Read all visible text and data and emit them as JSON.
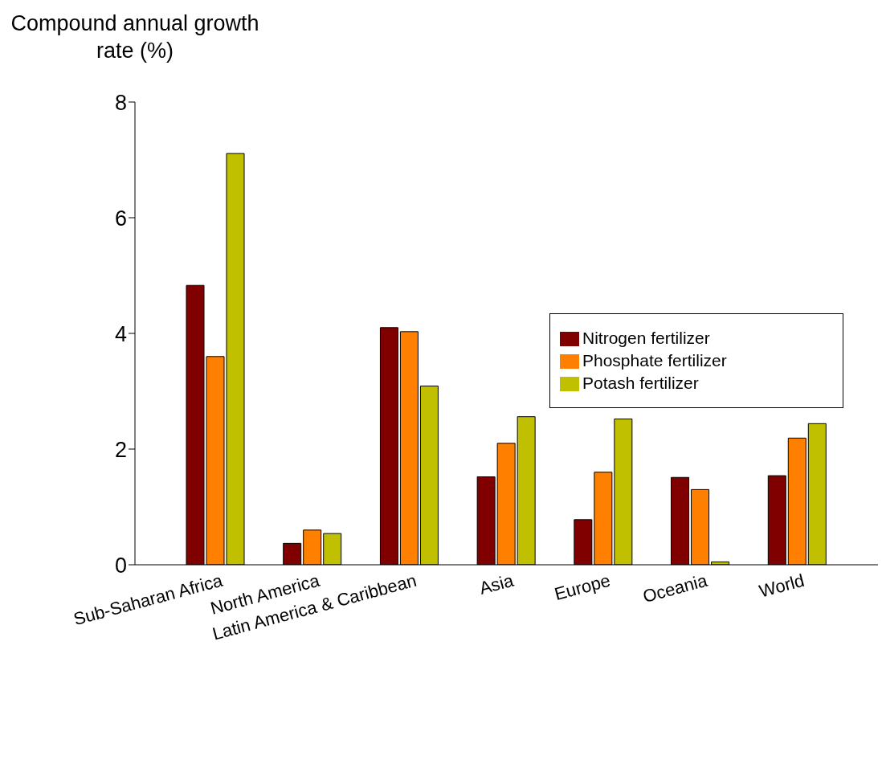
{
  "chart_data": {
    "type": "bar",
    "ylabel": "Compound annual growth rate (%)",
    "categories": [
      "Sub-Saharan Africa",
      "North America",
      "Latin America & Caribbean",
      "Asia",
      "Europe",
      "Oceania",
      "World"
    ],
    "series": [
      {
        "name": "Nitrogen fertilizer",
        "color": "#800000",
        "values": [
          4.83,
          0.37,
          4.1,
          1.52,
          0.78,
          1.51,
          1.54
        ]
      },
      {
        "name": "Phosphate fertilizer",
        "color": "#ff8000",
        "values": [
          3.6,
          0.6,
          4.03,
          2.1,
          1.6,
          1.3,
          2.19
        ]
      },
      {
        "name": "Potash fertilizer",
        "color": "#c0c000",
        "values": [
          7.11,
          0.54,
          3.09,
          2.56,
          2.52,
          0.05,
          2.44
        ]
      }
    ],
    "ylim": [
      0,
      8
    ],
    "yticks": [
      0,
      2,
      4,
      6,
      8
    ],
    "grid": false,
    "legend": "right"
  }
}
